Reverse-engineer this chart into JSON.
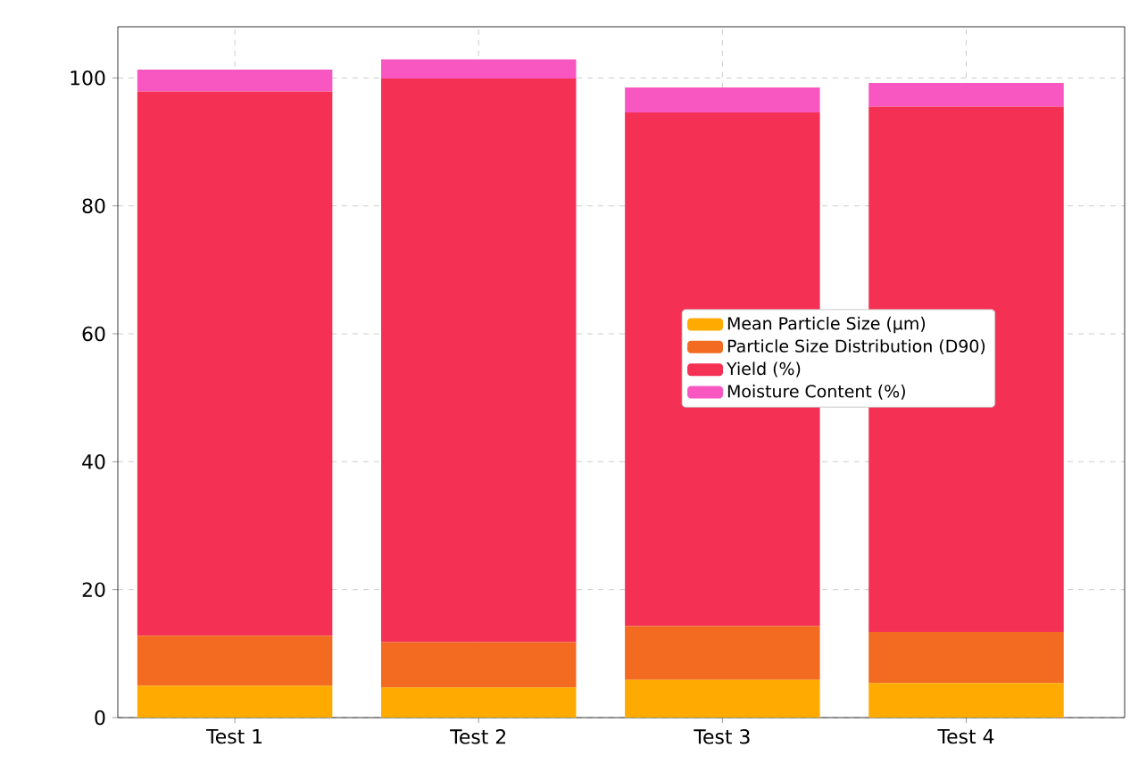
{
  "chart_data": {
    "type": "bar",
    "stacked": true,
    "categories": [
      "Test 1",
      "Test 2",
      "Test 3",
      "Test 4"
    ],
    "series": [
      {
        "name": "Mean Particle Size (µm)",
        "color": "#ffaa00",
        "values": [
          5.0,
          4.7,
          5.9,
          5.4
        ]
      },
      {
        "name": "Particle Size Distribution (D90)",
        "color": "#f26b21",
        "values": [
          7.8,
          7.1,
          8.4,
          8.0
        ]
      },
      {
        "name": "Yield (%)",
        "color": "#f43155",
        "values": [
          85.1,
          88.1,
          80.3,
          82.1
        ]
      },
      {
        "name": "Moisture Content (%)",
        "color": "#f857c1",
        "values": [
          3.4,
          3.0,
          3.9,
          3.7
        ]
      }
    ],
    "ylim": [
      0,
      108
    ],
    "yticks": [
      0,
      20,
      40,
      60,
      80,
      100
    ],
    "grid": true,
    "legend": "right"
  }
}
